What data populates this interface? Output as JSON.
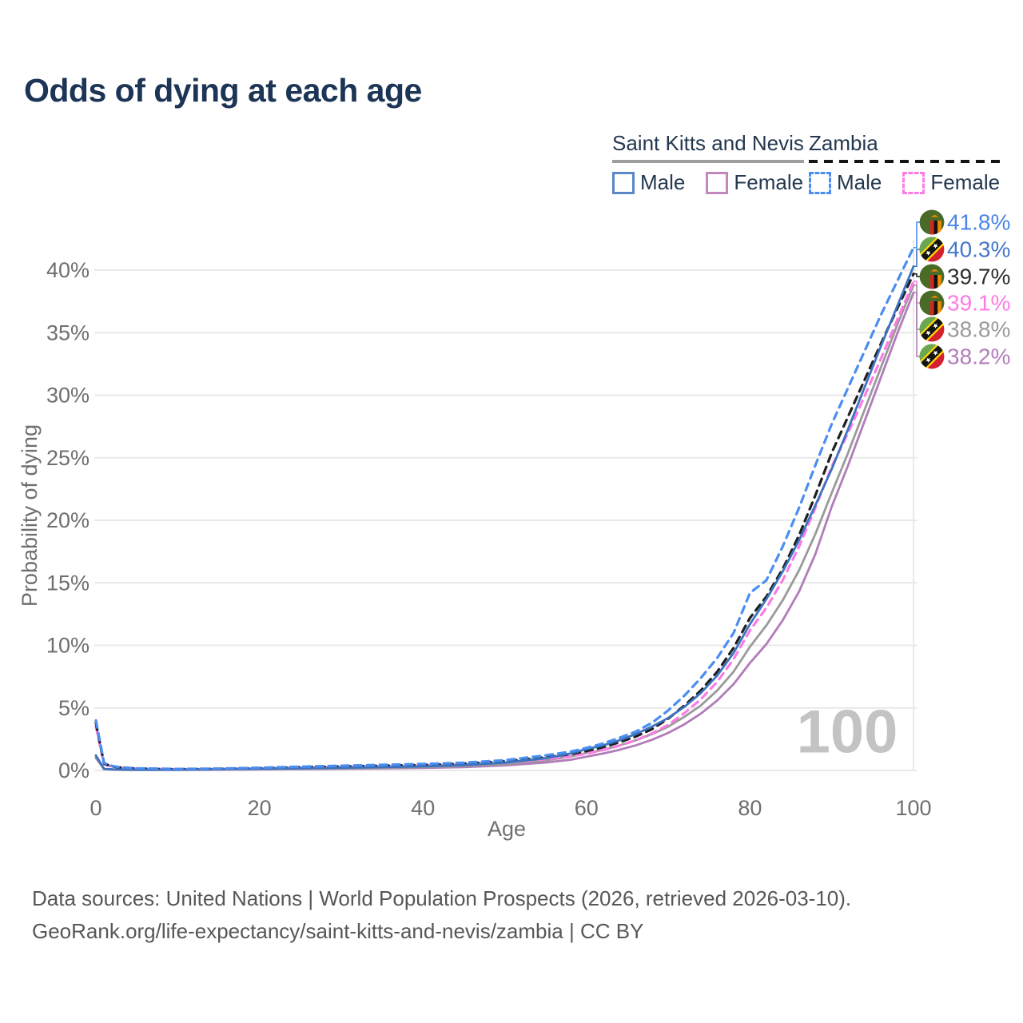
{
  "title": "Odds of dying at each age",
  "legend": {
    "groups": [
      {
        "country": "Saint Kitts and Nevis",
        "line_style": "solid",
        "line_color": "#9e9e9e",
        "items": [
          {
            "label": "Male",
            "color": "#5b87c7",
            "dashed": false
          },
          {
            "label": "Female",
            "color": "#c287bd",
            "dashed": false
          }
        ]
      },
      {
        "country": "Zambia",
        "line_style": "dashed",
        "line_color": "#141414",
        "items": [
          {
            "label": "Male",
            "color": "#4a8ef2",
            "dashed": true
          },
          {
            "label": "Female",
            "color": "#fb7ce4",
            "dashed": true
          }
        ]
      }
    ]
  },
  "chart_data": {
    "type": "line",
    "title": "Odds of dying at each age",
    "xlabel": "Age",
    "ylabel": "Probability of dying",
    "x_ticks": [
      0,
      20,
      40,
      60,
      80,
      100
    ],
    "y_ticks": [
      "0%",
      "5%",
      "10%",
      "15%",
      "20%",
      "25%",
      "30%",
      "35%",
      "40%"
    ],
    "y_tick_values": [
      0,
      5,
      10,
      15,
      20,
      25,
      30,
      35,
      40
    ],
    "xlim": [
      0,
      100
    ],
    "ylim": [
      0,
      44
    ],
    "grid": "horizontal",
    "watermark": "100",
    "x": [
      0,
      1,
      2,
      3,
      5,
      10,
      15,
      20,
      25,
      30,
      35,
      40,
      45,
      50,
      55,
      58,
      60,
      62,
      64,
      66,
      68,
      70,
      72,
      74,
      76,
      78,
      80,
      82,
      84,
      86,
      88,
      90,
      92,
      94,
      96,
      98,
      100
    ],
    "series": [
      {
        "name": "Zambia Male",
        "country": "Zambia",
        "flag_icon": "zambia-flag-icon",
        "style": "dashed",
        "color": "#4a8ef2",
        "label_color": "#4a86e8",
        "end_label": "41.8%",
        "values": [
          4.0,
          0.6,
          0.35,
          0.25,
          0.17,
          0.12,
          0.15,
          0.22,
          0.3,
          0.38,
          0.45,
          0.52,
          0.62,
          0.82,
          1.2,
          1.5,
          1.8,
          2.15,
          2.6,
          3.1,
          3.8,
          4.8,
          6.0,
          7.4,
          9.0,
          11.0,
          14.2,
          15.2,
          17.9,
          21.0,
          24.4,
          27.7,
          30.6,
          33.5,
          36.4,
          39.1,
          41.8
        ]
      },
      {
        "name": "Saint Kitts and Nevis Male",
        "country": "Saint Kitts and Nevis",
        "flag_icon": "saint-kitts-and-nevis-flag-icon",
        "style": "solid",
        "color": "#3c73c0",
        "label_color": "#4577c8",
        "end_label": "40.3%",
        "values": [
          1.2,
          0.13,
          0.09,
          0.07,
          0.06,
          0.06,
          0.1,
          0.14,
          0.17,
          0.21,
          0.26,
          0.32,
          0.43,
          0.62,
          0.98,
          1.35,
          1.7,
          2.0,
          2.4,
          2.9,
          3.5,
          4.2,
          5.1,
          6.2,
          7.6,
          9.4,
          11.7,
          13.7,
          15.9,
          18.4,
          21.2,
          24.1,
          27.3,
          30.6,
          33.9,
          37.1,
          40.3
        ]
      },
      {
        "name": "Zambia",
        "country": "Zambia",
        "flag_icon": "zambia-flag-icon",
        "style": "dashed",
        "color": "#1f1f1f",
        "label_color": "#2d2d2d",
        "end_label": "39.7%",
        "values": [
          3.8,
          0.55,
          0.32,
          0.23,
          0.15,
          0.1,
          0.13,
          0.18,
          0.25,
          0.32,
          0.38,
          0.44,
          0.54,
          0.72,
          1.05,
          1.3,
          1.55,
          1.85,
          2.25,
          2.7,
          3.3,
          4.15,
          5.2,
          6.4,
          7.9,
          9.8,
          12.2,
          13.9,
          16.1,
          18.8,
          22.0,
          25.4,
          28.3,
          31.2,
          34.1,
          36.9,
          39.7
        ]
      },
      {
        "name": "Zambia Female",
        "country": "Zambia",
        "flag_icon": "zambia-flag-icon",
        "style": "dashed",
        "color": "#fb7ce4",
        "label_color": "#fb7ce4",
        "end_label": "39.1%",
        "values": [
          3.5,
          0.5,
          0.3,
          0.21,
          0.14,
          0.09,
          0.11,
          0.15,
          0.2,
          0.26,
          0.31,
          0.37,
          0.46,
          0.62,
          0.9,
          1.12,
          1.35,
          1.62,
          1.98,
          2.4,
          2.95,
          3.65,
          4.6,
          5.7,
          7.1,
          8.9,
          11.2,
          13.0,
          15.2,
          17.9,
          21.0,
          24.3,
          27.0,
          29.9,
          32.9,
          36.0,
          39.1
        ]
      },
      {
        "name": "Saint Kitts and Nevis",
        "country": "Saint Kitts and Nevis",
        "flag_icon": "saint-kitts-and-nevis-flag-icon",
        "style": "solid",
        "color": "#9a9a9a",
        "label_color": "#9a9a9a",
        "end_label": "38.8%",
        "values": [
          1.1,
          0.11,
          0.08,
          0.06,
          0.05,
          0.05,
          0.08,
          0.11,
          0.14,
          0.17,
          0.21,
          0.26,
          0.35,
          0.5,
          0.8,
          1.1,
          1.4,
          1.65,
          2.0,
          2.4,
          2.9,
          3.5,
          4.3,
          5.2,
          6.4,
          7.9,
          9.9,
          11.6,
          13.6,
          16.0,
          18.9,
          22.2,
          25.4,
          28.8,
          32.2,
          35.6,
          38.8
        ]
      },
      {
        "name": "Saint Kitts and Nevis Female",
        "country": "Saint Kitts and Nevis",
        "flag_icon": "saint-kitts-and-nevis-flag-icon",
        "style": "solid",
        "color": "#b27cba",
        "label_color": "#b27cba",
        "end_label": "38.2%",
        "values": [
          1.0,
          0.1,
          0.07,
          0.05,
          0.04,
          0.04,
          0.06,
          0.08,
          0.1,
          0.13,
          0.16,
          0.2,
          0.27,
          0.4,
          0.63,
          0.85,
          1.1,
          1.35,
          1.65,
          2.0,
          2.45,
          3.0,
          3.7,
          4.55,
          5.6,
          6.9,
          8.6,
          10.1,
          12.0,
          14.3,
          17.3,
          21.1,
          24.4,
          27.9,
          31.4,
          34.9,
          38.2
        ]
      }
    ]
  },
  "colors": {
    "title": "#1c3456",
    "tick_text": "#6f6f6f",
    "gridline": "#e9e9e9",
    "watermark": "#c3c3c3",
    "footer": "#575757"
  },
  "footer": {
    "line1": "Data sources: United Nations | World Population Prospects (2026, retrieved 2026-03-10).",
    "line2": "GeoRank.org/life-expectancy/saint-kitts-and-nevis/zambia | CC BY"
  }
}
